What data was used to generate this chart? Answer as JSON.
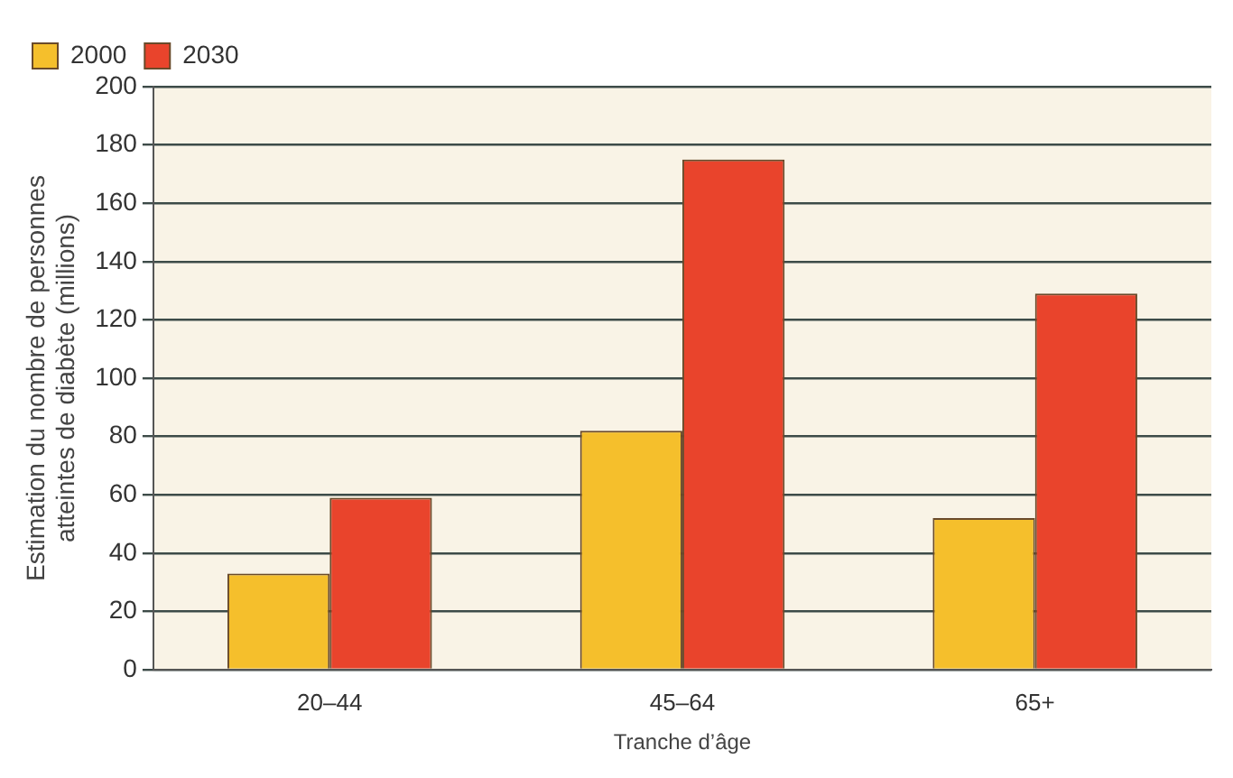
{
  "chart_data": {
    "type": "bar",
    "xlabel": "Tranche d’âge",
    "ylabel": "Estimation du nombre de personnes\natteintes de diabète (millions)",
    "categories": [
      "20–44",
      "45–64",
      "65+"
    ],
    "series": [
      {
        "name": "2000",
        "color": "#f5bf2c",
        "values": [
          33,
          82,
          52
        ]
      },
      {
        "name": "2030",
        "color": "#e9442c",
        "values": [
          59,
          175,
          129
        ]
      }
    ],
    "ylim": [
      0,
      200
    ],
    "yticks": [
      0,
      20,
      40,
      60,
      80,
      100,
      120,
      140,
      160,
      180,
      200
    ],
    "grid": "y",
    "legend": "top left"
  }
}
